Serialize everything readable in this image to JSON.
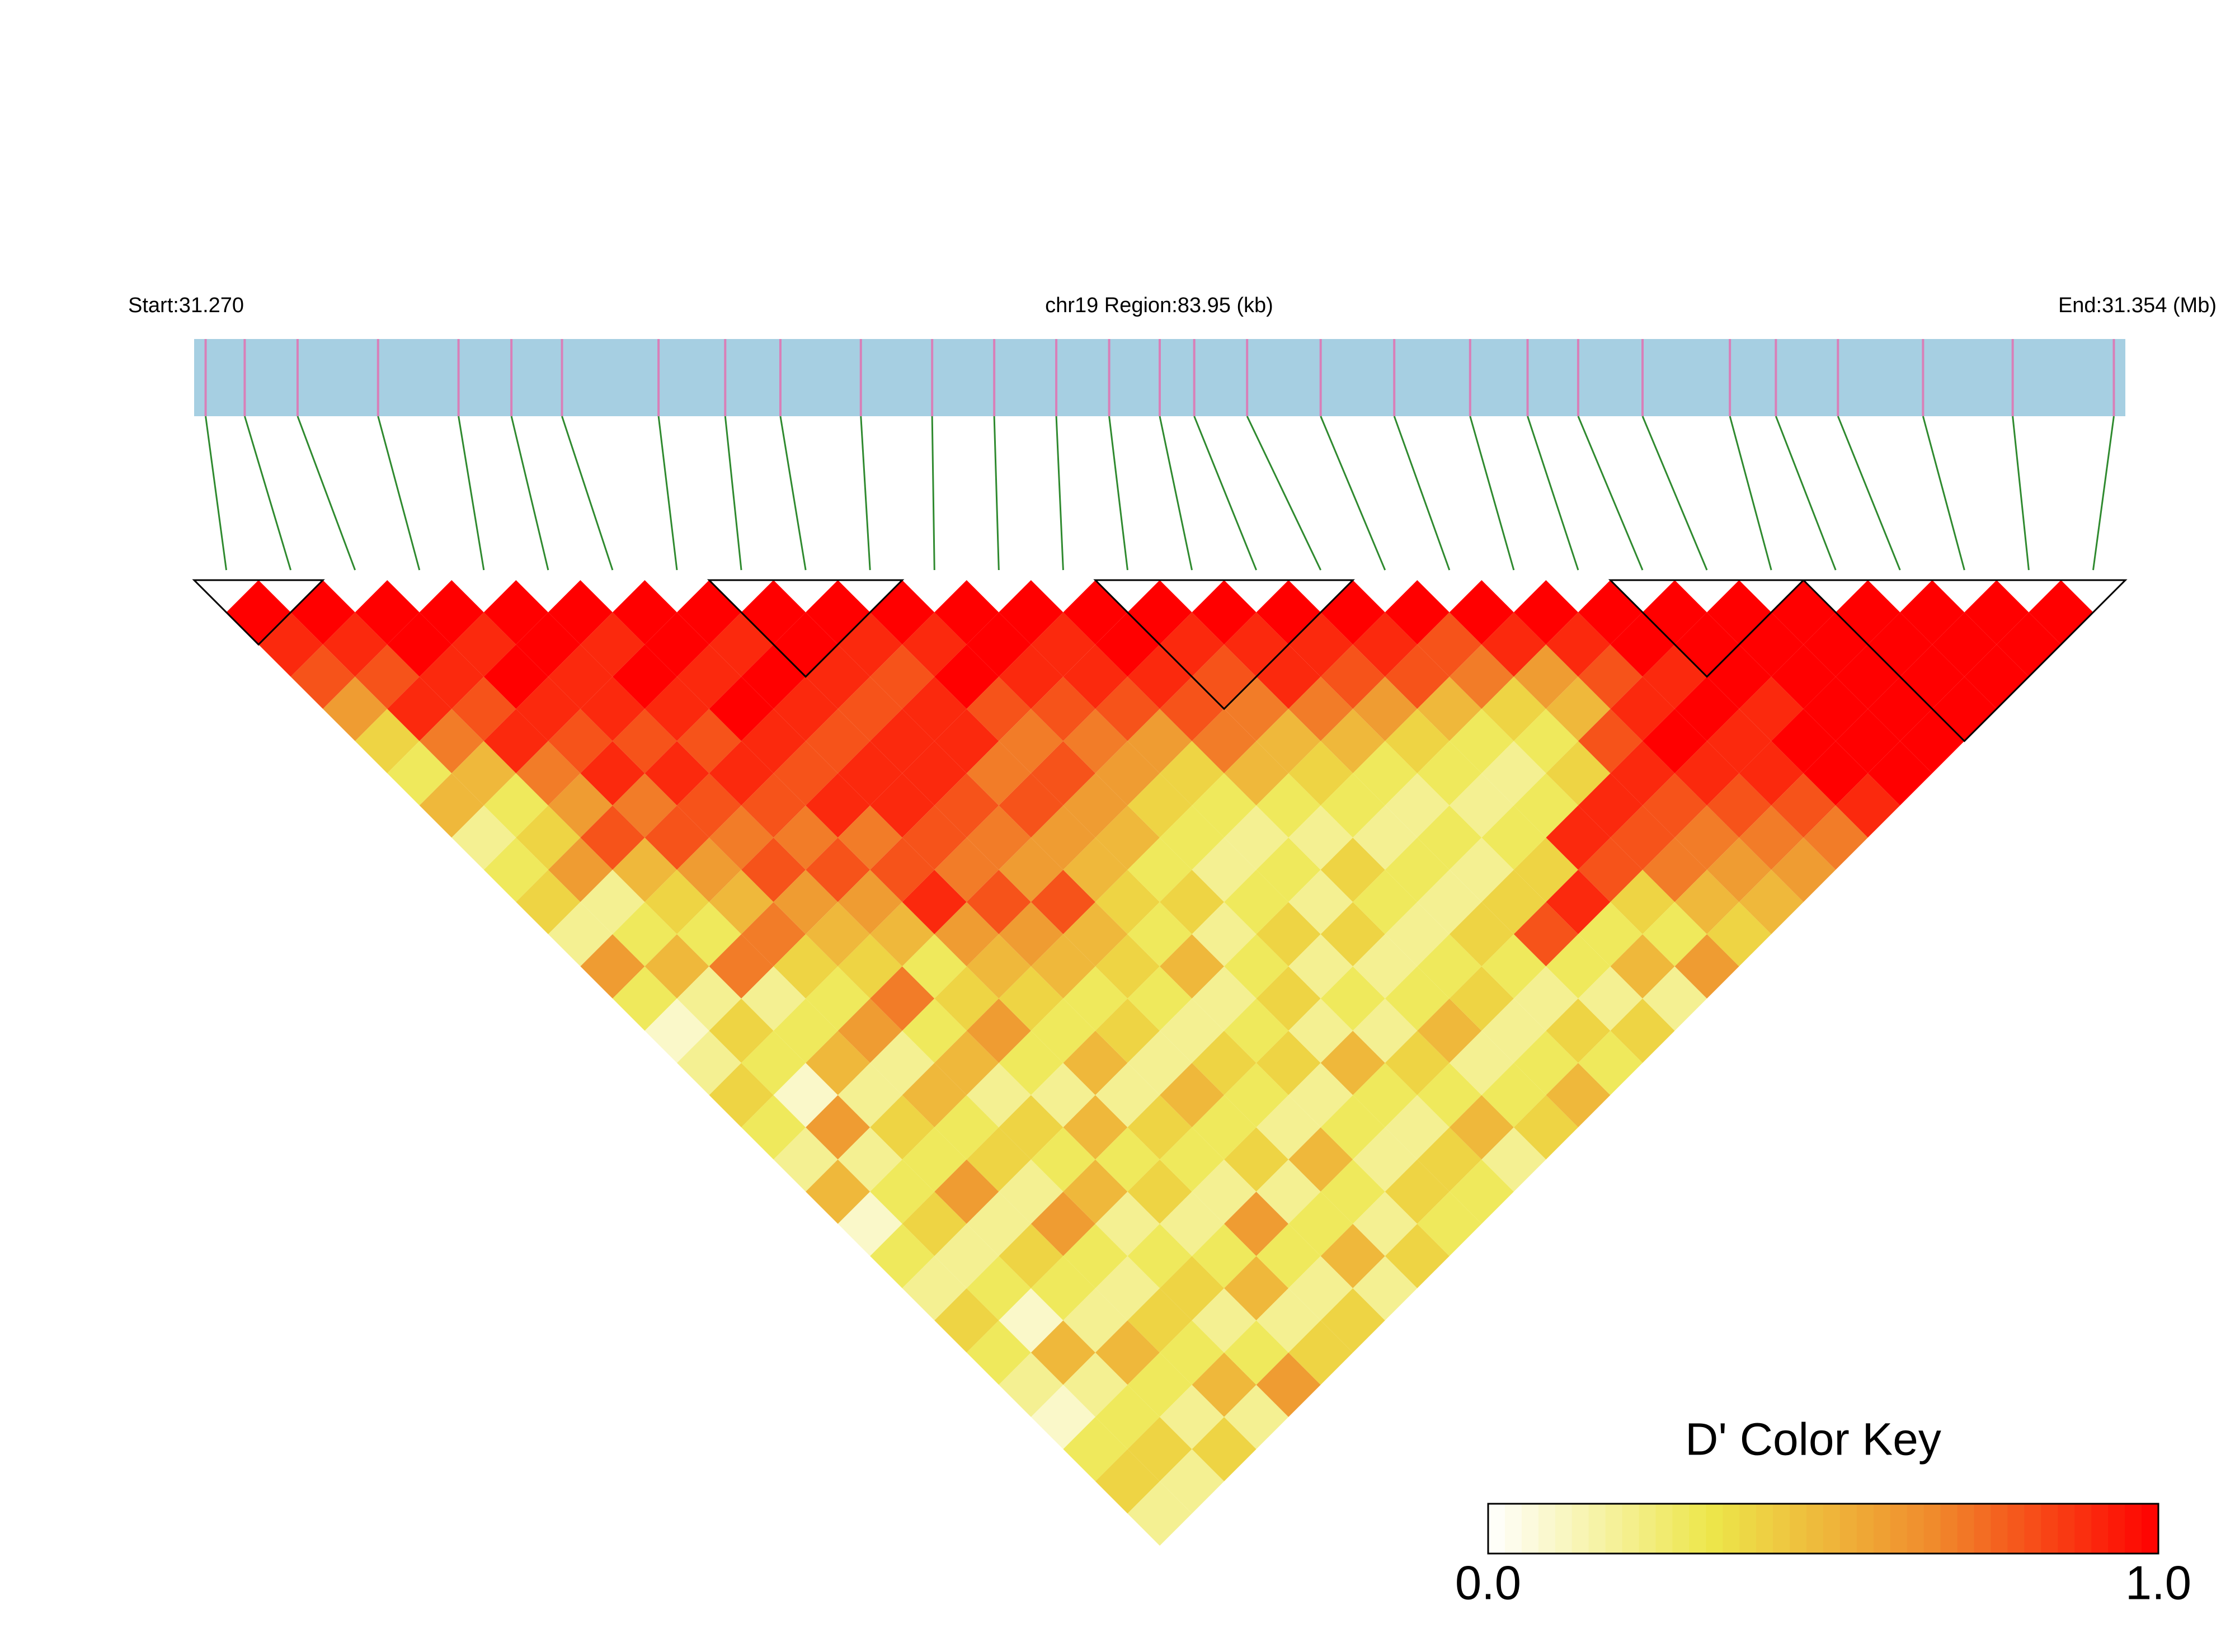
{
  "chart_data": {
    "type": "ld-heatmap",
    "start_label": "Start:31.270",
    "region_label": "chr19 Region:83.95 (kb)",
    "end_label": "End:31.354 (Mb)",
    "xlim": [
      31.27,
      31.354
    ],
    "positions": [
      31.2705,
      31.2722,
      31.2745,
      31.278,
      31.2815,
      31.2838,
      31.286,
      31.2902,
      31.2931,
      31.2955,
      31.299,
      31.3021,
      31.3048,
      31.3075,
      31.3098,
      31.312,
      31.3135,
      31.3158,
      31.319,
      31.3222,
      31.3255,
      31.328,
      31.3302,
      31.333,
      31.3368,
      31.3388,
      31.3415,
      31.3452,
      31.3491,
      31.3535
    ],
    "track_color": "#a6cfe2",
    "snp_line_color": "#d97fb8",
    "connector_color": "#2f8a2f",
    "values": [
      [
        1,
        0.9,
        0.8,
        0.6,
        0.4,
        0.3,
        0.5,
        0.2,
        0.3,
        0.4,
        0.2,
        0.6,
        0.3,
        0.1,
        0.2,
        0.4,
        0.3,
        0.2,
        0.5,
        0.1,
        0.3,
        0.2,
        0.4,
        0.3,
        0.2,
        0.1,
        0.3,
        0.4,
        0.2
      ],
      [
        1,
        0.9,
        0.8,
        0.9,
        0.7,
        0.5,
        0.3,
        0.4,
        0.6,
        0.2,
        0.3,
        0.5,
        0.2,
        0.4,
        0.3,
        0.1,
        0.6,
        0.2,
        0.3,
        0.4,
        0.2,
        0.3,
        0.1,
        0.5,
        0.2,
        0.3,
        0.4,
        0.2
      ],
      [
        1,
        1,
        0.9,
        0.8,
        0.9,
        0.7,
        0.6,
        0.8,
        0.5,
        0.4,
        0.3,
        0.7,
        0.2,
        0.3,
        0.5,
        0.2,
        0.4,
        0.3,
        0.6,
        0.2,
        0.4,
        0.3,
        0.2,
        0.5,
        0.3,
        0.2,
        0.4
      ],
      [
        1,
        0.9,
        1,
        0.9,
        0.8,
        0.9,
        0.7,
        0.8,
        0.6,
        0.5,
        0.7,
        0.4,
        0.3,
        0.6,
        0.2,
        0.5,
        0.3,
        0.4,
        0.2,
        0.6,
        0.3,
        0.2,
        0.4,
        0.3,
        0.5,
        0.2
      ],
      [
        1,
        1,
        0.9,
        0.9,
        0.8,
        0.9,
        0.8,
        0.7,
        0.8,
        0.6,
        0.5,
        0.4,
        0.7,
        0.3,
        0.5,
        0.2,
        0.4,
        0.3,
        0.5,
        0.2,
        0.3,
        0.4,
        0.2,
        0.3,
        0.6
      ],
      [
        1,
        0.9,
        1,
        0.9,
        0.8,
        0.9,
        0.8,
        0.7,
        0.8,
        0.6,
        0.5,
        0.3,
        0.4,
        0.6,
        0.3,
        0.2,
        0.5,
        0.3,
        0.4,
        0.2,
        0.3,
        0.5,
        0.2,
        0.4
      ],
      [
        1,
        1,
        0.9,
        1,
        0.9,
        0.8,
        0.9,
        0.7,
        0.8,
        0.9,
        0.6,
        0.5,
        0.4,
        0.3,
        0.5,
        0.2,
        0.4,
        0.3,
        0.2,
        0.6,
        0.3,
        0.2,
        0.4
      ],
      [
        1,
        0.9,
        1,
        0.9,
        0.8,
        0.9,
        0.9,
        0.8,
        0.7,
        0.8,
        0.6,
        0.5,
        0.3,
        0.4,
        0.2,
        0.5,
        0.3,
        0.4,
        0.2,
        0.3,
        0.5,
        0.2
      ],
      [
        1,
        1,
        0.9,
        0.8,
        0.9,
        0.9,
        0.8,
        0.7,
        0.6,
        0.8,
        0.5,
        0.4,
        0.3,
        0.2,
        0.4,
        0.3,
        0.2,
        0.5,
        0.3,
        0.2,
        0.4
      ],
      [
        1,
        0.9,
        0.8,
        0.9,
        0.9,
        0.7,
        0.8,
        0.6,
        0.5,
        0.4,
        0.3,
        0.5,
        0.2,
        0.3,
        0.4,
        0.2,
        0.3,
        0.2,
        0.4,
        0.3
      ],
      [
        1,
        0.9,
        1,
        0.8,
        0.7,
        0.8,
        0.6,
        0.5,
        0.3,
        0.4,
        0.2,
        0.3,
        0.4,
        0.2,
        0.5,
        0.3,
        0.2,
        0.4,
        0.3
      ],
      [
        1,
        1,
        0.9,
        0.8,
        0.7,
        0.6,
        0.4,
        0.3,
        0.2,
        0.3,
        0.4,
        0.2,
        0.3,
        0.2,
        0.4,
        0.3,
        0.5,
        0.2
      ],
      [
        1,
        0.9,
        0.9,
        0.8,
        0.6,
        0.4,
        0.3,
        0.2,
        0.3,
        0.2,
        0.4,
        0.2,
        0.3,
        0.5,
        0.2,
        0.3,
        0.4
      ],
      [
        1,
        1,
        0.9,
        0.8,
        0.7,
        0.5,
        0.3,
        0.2,
        0.4,
        0.3,
        0.2,
        0.3,
        0.4,
        0.2,
        0.3,
        0.5
      ],
      [
        1,
        0.9,
        0.8,
        0.7,
        0.5,
        0.4,
        0.3,
        0.2,
        0.3,
        0.2,
        0.4,
        0.3,
        0.2,
        0.4,
        0.3
      ],
      [
        1,
        0.9,
        0.9,
        0.7,
        0.5,
        0.3,
        0.2,
        0.3,
        0.2,
        0.4,
        0.8,
        0.3,
        0.2,
        0.4
      ],
      [
        1,
        0.9,
        0.8,
        0.6,
        0.4,
        0.3,
        0.2,
        0.3,
        0.4,
        0.9,
        0.3,
        0.5,
        0.2
      ],
      [
        1,
        0.9,
        0.8,
        0.5,
        0.3,
        0.2,
        0.3,
        0.9,
        0.8,
        0.4,
        0.3,
        0.6
      ],
      [
        1,
        0.8,
        0.7,
        0.4,
        0.3,
        0.4,
        0.9,
        0.8,
        0.7,
        0.5,
        0.4
      ],
      [
        1,
        0.9,
        0.6,
        0.5,
        0.8,
        0.9,
        0.8,
        0.7,
        0.6,
        0.5
      ],
      [
        1,
        0.9,
        0.8,
        0.9,
        1,
        0.9,
        0.8,
        0.7,
        0.6
      ],
      [
        1,
        1,
        0.9,
        1,
        0.9,
        0.9,
        0.8,
        0.7
      ],
      [
        1,
        1,
        1,
        0.9,
        1,
        1,
        0.9
      ],
      [
        1,
        1,
        1,
        1,
        1,
        1
      ],
      [
        1,
        1,
        1,
        1,
        1
      ],
      [
        1,
        1,
        1,
        1
      ],
      [
        1,
        1,
        1
      ],
      [
        1,
        1
      ],
      [
        1
      ]
    ],
    "blocks": [
      [
        0,
        1
      ],
      [
        8,
        10
      ],
      [
        14,
        17
      ],
      [
        22,
        24
      ],
      [
        25,
        29
      ]
    ],
    "color_key": {
      "title": "D' Color Key",
      "lim": [
        0,
        1
      ],
      "ticks": [
        {
          "value": 0,
          "label": "0.0"
        },
        {
          "value": 1,
          "label": "1.0"
        }
      ],
      "colors": [
        "#ffffff",
        "#ede64a",
        "#f08a2c",
        "#ff0000"
      ]
    }
  }
}
